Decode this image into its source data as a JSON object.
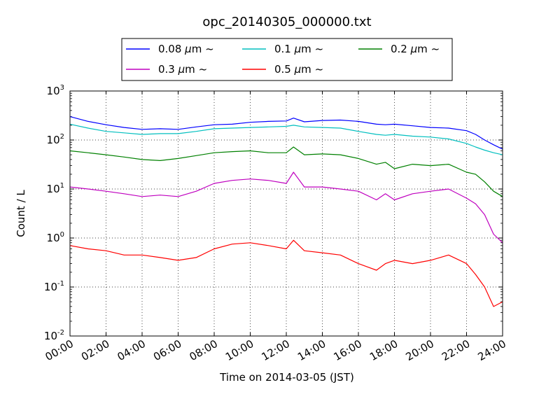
{
  "chart_data": {
    "type": "line",
    "title": "opc_20140305_000000.txt",
    "xlabel": "Time on 2014-03-05 (JST)",
    "ylabel": "Count / L",
    "x_unit": "hours",
    "xlim": [
      0,
      24
    ],
    "ylim": [
      0.01,
      1000
    ],
    "y_scale": "log",
    "grid": true,
    "legend_position": "top-outside",
    "x_ticks": [
      "00:00",
      "02:00",
      "04:00",
      "06:00",
      "08:00",
      "10:00",
      "12:00",
      "14:00",
      "16:00",
      "18:00",
      "20:00",
      "22:00",
      "24:00"
    ],
    "y_ticks": [
      {
        "base": "10",
        "exp": "-2",
        "value": 0.01
      },
      {
        "base": "10",
        "exp": "-1",
        "value": 0.1
      },
      {
        "base": "10",
        "exp": "0",
        "value": 1
      },
      {
        "base": "10",
        "exp": "1",
        "value": 10
      },
      {
        "base": "10",
        "exp": "2",
        "value": 100
      },
      {
        "base": "10",
        "exp": "3",
        "value": 1000
      }
    ],
    "x": [
      0,
      1,
      2,
      3,
      4,
      5,
      6,
      7,
      8,
      9,
      10,
      11,
      12,
      12.4,
      13,
      14,
      15,
      16,
      17,
      17.5,
      18,
      19,
      20,
      21,
      22,
      22.5,
      23,
      23.5,
      24
    ],
    "series": [
      {
        "name": "0.08 μm ~",
        "label_num": "0.08 ",
        "label_unit": "μm",
        "label_tilde": "~",
        "color": "#0000ff",
        "values": [
          300,
          240,
          205,
          180,
          165,
          170,
          165,
          185,
          205,
          210,
          230,
          240,
          245,
          280,
          235,
          250,
          255,
          240,
          210,
          205,
          210,
          195,
          180,
          175,
          155,
          130,
          100,
          80,
          65
        ]
      },
      {
        "name": "0.1 μm ~",
        "label_num": "0.1 ",
        "label_unit": "μm",
        "label_tilde": "~",
        "color": "#00bfbf",
        "values": [
          210,
          175,
          150,
          140,
          130,
          135,
          135,
          150,
          170,
          175,
          180,
          185,
          190,
          200,
          185,
          180,
          175,
          150,
          130,
          125,
          130,
          120,
          115,
          105,
          85,
          72,
          62,
          55,
          50
        ]
      },
      {
        "name": "0.2 μm ~",
        "label_num": "0.2 ",
        "label_unit": "μm",
        "label_tilde": "~",
        "color": "#008000",
        "values": [
          60,
          55,
          50,
          45,
          40,
          38,
          42,
          48,
          55,
          58,
          60,
          55,
          55,
          72,
          50,
          52,
          50,
          42,
          32,
          35,
          26,
          32,
          30,
          32,
          22,
          20,
          14,
          9,
          7
        ]
      },
      {
        "name": "0.3 μm ~",
        "label_num": "0.3 ",
        "label_unit": "μm",
        "label_tilde": "~",
        "color": "#bf00bf",
        "values": [
          11,
          10,
          9,
          8,
          7,
          7.5,
          7,
          9,
          13,
          15,
          16,
          15,
          13,
          22,
          11,
          11,
          10,
          9,
          6,
          8,
          6,
          8,
          9,
          10,
          6.5,
          5,
          3,
          1.2,
          0.8
        ]
      },
      {
        "name": "0.5 μm ~",
        "label_num": "0.5 ",
        "label_unit": "μm",
        "label_tilde": "~",
        "color": "#ff0000",
        "values": [
          0.7,
          0.6,
          0.55,
          0.45,
          0.45,
          0.4,
          0.35,
          0.4,
          0.6,
          0.75,
          0.8,
          0.7,
          0.6,
          0.9,
          0.55,
          0.5,
          0.45,
          0.3,
          0.22,
          0.3,
          0.35,
          0.3,
          0.35,
          0.45,
          0.3,
          0.18,
          0.1,
          0.04,
          0.05
        ]
      }
    ]
  }
}
